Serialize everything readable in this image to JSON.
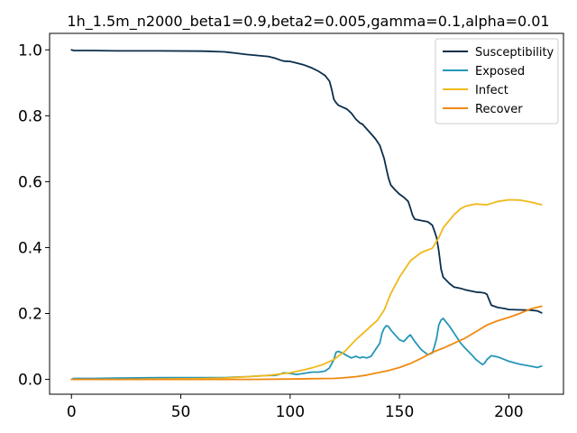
{
  "chart_data": {
    "type": "line",
    "title": "1h_1.5m_n2000_beta1=0.9,beta2=0.005,gamma=0.1,alpha=0.01",
    "xlabel": "",
    "ylabel": "",
    "xlim": [
      -10,
      225
    ],
    "ylim": [
      -0.045,
      1.05
    ],
    "xticks": [
      0,
      50,
      100,
      150,
      200
    ],
    "xtick_labels": [
      "0",
      "50",
      "100",
      "150",
      "200"
    ],
    "yticks": [
      0.0,
      0.2,
      0.4,
      0.6,
      0.8,
      1.0
    ],
    "ytick_labels": [
      "0.0",
      "0.2",
      "0.4",
      "0.6",
      "0.8",
      "1.0"
    ],
    "grid": false,
    "legend_position": "top-right",
    "series": [
      {
        "name": "Susceptibility",
        "color": "#0b2e4a",
        "x": [
          0,
          1,
          10,
          20,
          40,
          60,
          70,
          75,
          80,
          85,
          90,
          93,
          95,
          97,
          100,
          103,
          106,
          110,
          113,
          116,
          118,
          119,
          120,
          121,
          122,
          124,
          126,
          128,
          130,
          132,
          133,
          135,
          137,
          139,
          141,
          142,
          143,
          144,
          145,
          146,
          148,
          150,
          152,
          154,
          155,
          156,
          157,
          160,
          163,
          165,
          166,
          167,
          168,
          169,
          170,
          173,
          175,
          178,
          180,
          183,
          185,
          187,
          188,
          189,
          190,
          192,
          195,
          198,
          200,
          205,
          210,
          213,
          215
        ],
        "y": [
          1.0,
          0.998,
          0.998,
          0.997,
          0.997,
          0.996,
          0.994,
          0.99,
          0.986,
          0.983,
          0.98,
          0.975,
          0.97,
          0.966,
          0.965,
          0.96,
          0.955,
          0.945,
          0.935,
          0.922,
          0.905,
          0.88,
          0.85,
          0.84,
          0.832,
          0.826,
          0.82,
          0.808,
          0.79,
          0.778,
          0.775,
          0.76,
          0.745,
          0.73,
          0.71,
          0.69,
          0.67,
          0.64,
          0.61,
          0.59,
          0.575,
          0.562,
          0.553,
          0.54,
          0.52,
          0.498,
          0.486,
          0.482,
          0.478,
          0.468,
          0.45,
          0.43,
          0.39,
          0.335,
          0.31,
          0.29,
          0.28,
          0.276,
          0.272,
          0.268,
          0.265,
          0.264,
          0.263,
          0.262,
          0.258,
          0.225,
          0.218,
          0.215,
          0.212,
          0.211,
          0.21,
          0.208,
          0.202
        ]
      },
      {
        "name": "Exposed",
        "color": "#2596b8",
        "x": [
          0,
          1,
          10,
          20,
          40,
          60,
          70,
          75,
          80,
          85,
          90,
          93,
          95,
          97,
          100,
          103,
          106,
          110,
          113,
          116,
          118,
          120,
          121,
          122,
          124,
          126,
          128,
          130,
          132,
          133,
          135,
          137,
          139,
          141,
          142,
          143,
          144,
          145,
          146,
          148,
          150,
          152,
          154,
          155,
          156,
          157,
          160,
          163,
          165,
          166,
          167,
          168,
          169,
          170,
          173,
          175,
          178,
          180,
          183,
          185,
          187,
          188,
          189,
          190,
          192,
          195,
          198,
          200,
          205,
          210,
          213,
          215
        ],
        "y": [
          0.0,
          0.003,
          0.003,
          0.004,
          0.005,
          0.005,
          0.005,
          0.007,
          0.008,
          0.01,
          0.012,
          0.012,
          0.015,
          0.02,
          0.018,
          0.015,
          0.018,
          0.022,
          0.022,
          0.025,
          0.035,
          0.06,
          0.082,
          0.085,
          0.08,
          0.072,
          0.065,
          0.07,
          0.065,
          0.068,
          0.065,
          0.07,
          0.09,
          0.11,
          0.14,
          0.155,
          0.163,
          0.16,
          0.15,
          0.135,
          0.12,
          0.115,
          0.13,
          0.135,
          0.125,
          0.115,
          0.09,
          0.075,
          0.08,
          0.1,
          0.125,
          0.165,
          0.18,
          0.185,
          0.16,
          0.14,
          0.11,
          0.095,
          0.075,
          0.06,
          0.05,
          0.045,
          0.05,
          0.06,
          0.072,
          0.068,
          0.06,
          0.055,
          0.046,
          0.04,
          0.036,
          0.04
        ]
      },
      {
        "name": "Infect",
        "color": "#f0b91a",
        "x": [
          0,
          10,
          20,
          40,
          60,
          70,
          80,
          90,
          95,
          100,
          105,
          110,
          115,
          120,
          125,
          130,
          135,
          140,
          143,
          146,
          150,
          155,
          160,
          165,
          168,
          170,
          175,
          178,
          180,
          183,
          185,
          190,
          195,
          200,
          205,
          210,
          215
        ],
        "y": [
          0.0,
          0.0,
          0.0,
          0.001,
          0.002,
          0.004,
          0.008,
          0.012,
          0.016,
          0.02,
          0.027,
          0.035,
          0.045,
          0.06,
          0.085,
          0.12,
          0.15,
          0.18,
          0.21,
          0.26,
          0.31,
          0.36,
          0.385,
          0.398,
          0.43,
          0.46,
          0.5,
          0.518,
          0.525,
          0.53,
          0.532,
          0.53,
          0.54,
          0.545,
          0.544,
          0.538,
          0.53
        ]
      },
      {
        "name": "Recover",
        "color": "#f08a10",
        "x": [
          0,
          20,
          40,
          60,
          80,
          100,
          110,
          120,
          125,
          130,
          135,
          140,
          145,
          150,
          155,
          160,
          165,
          170,
          175,
          180,
          185,
          190,
          195,
          200,
          205,
          210,
          215
        ],
        "y": [
          0.0,
          0.0,
          0.0,
          0.0,
          0.0,
          0.001,
          0.002,
          0.003,
          0.005,
          0.008,
          0.013,
          0.02,
          0.027,
          0.036,
          0.048,
          0.064,
          0.082,
          0.095,
          0.11,
          0.125,
          0.145,
          0.165,
          0.178,
          0.188,
          0.2,
          0.214,
          0.222
        ]
      }
    ]
  }
}
